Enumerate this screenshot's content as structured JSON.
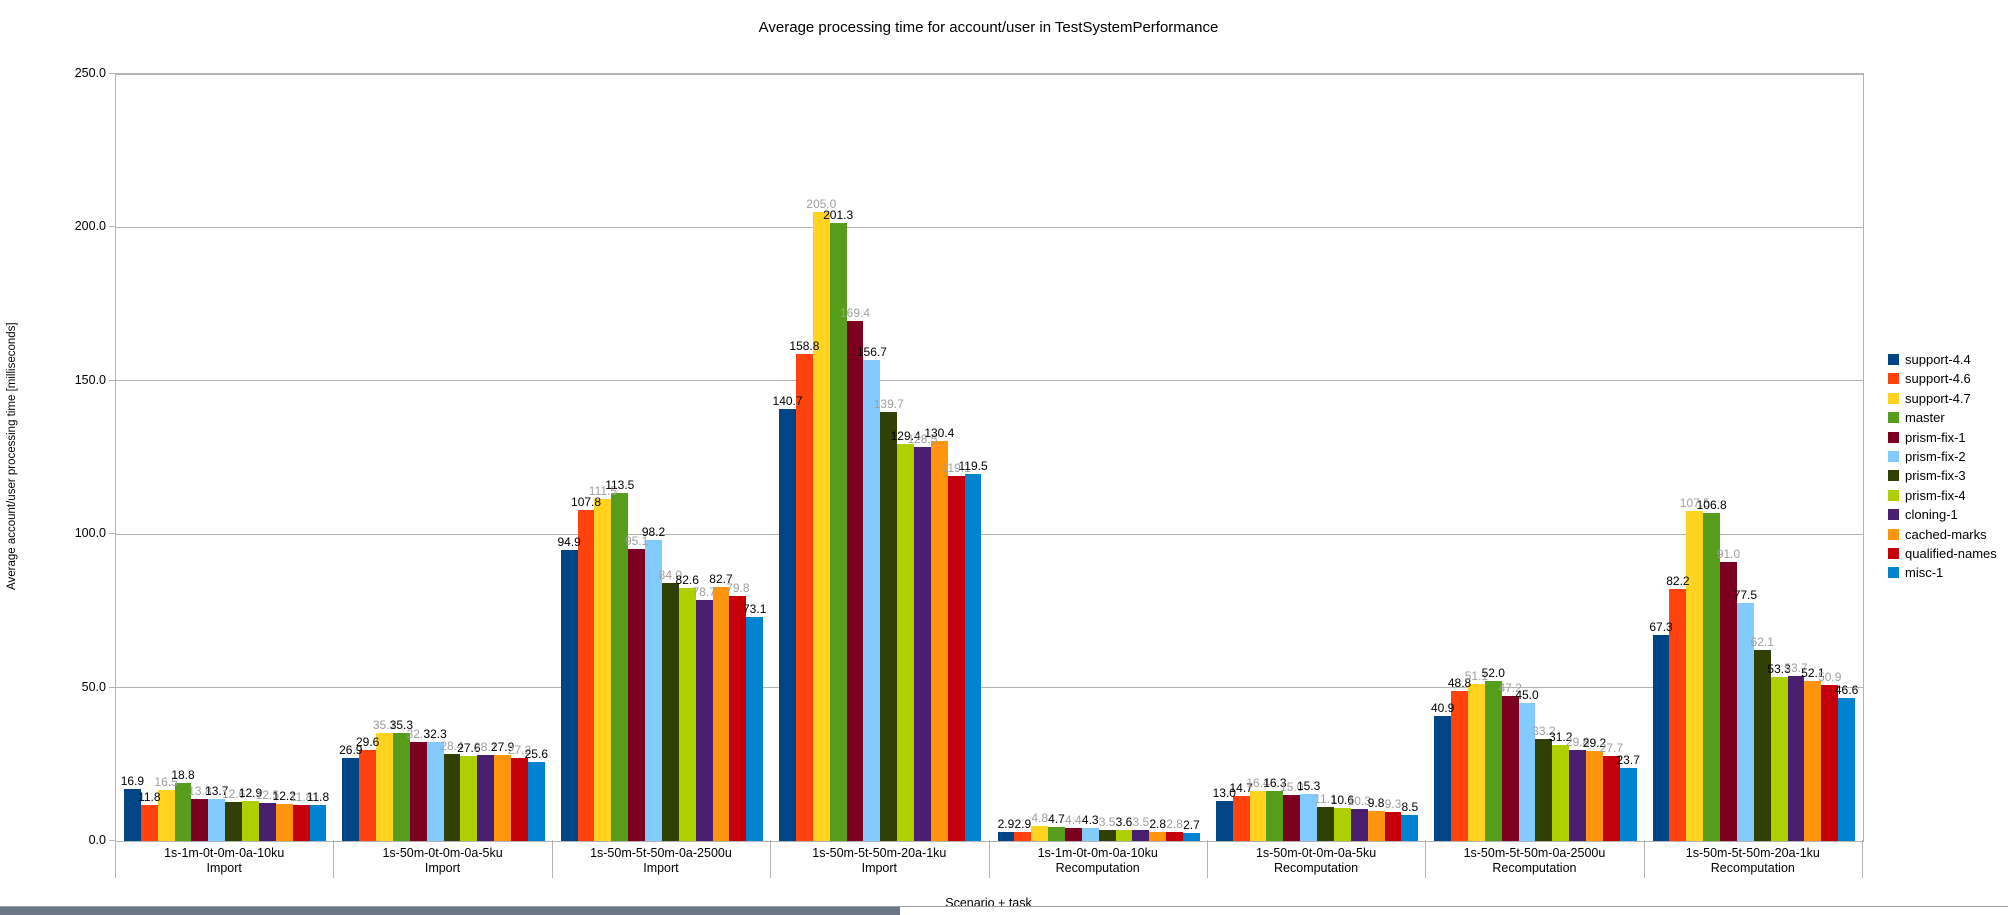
{
  "title": "Average processing time for account/user in TestSystemPerformance",
  "chart_data": {
    "type": "bar",
    "title": "Average processing time for account/user in TestSystemPerformance",
    "xlabel": "Scenario + task",
    "ylabel": "Average account/user processing time [milliseconds]",
    "ylim": [
      0,
      250
    ],
    "ytick_step": 50,
    "ytick_labels": [
      "0.0",
      "50.0",
      "100.0",
      "150.0",
      "200.0",
      "250.0"
    ],
    "grid": true,
    "legend_position": "right",
    "label_color_primary": "#000000",
    "label_color_alternate": "#9e9e9e",
    "categories": [
      {
        "line1": "1s-1m-0t-0m-0a-10ku",
        "line2": "Import"
      },
      {
        "line1": "1s-50m-0t-0m-0a-5ku",
        "line2": "Import"
      },
      {
        "line1": "1s-50m-5t-50m-0a-2500u",
        "line2": "Import"
      },
      {
        "line1": "1s-50m-5t-50m-20a-1ku",
        "line2": "Import"
      },
      {
        "line1": "1s-1m-0t-0m-0a-10ku",
        "line2": "Recomputation"
      },
      {
        "line1": "1s-50m-0t-0m-0a-5ku",
        "line2": "Recomputation"
      },
      {
        "line1": "1s-50m-5t-50m-0a-2500u",
        "line2": "Recomputation"
      },
      {
        "line1": "1s-50m-5t-50m-20a-1ku",
        "line2": "Recomputation"
      }
    ],
    "series": [
      {
        "name": "support-4.4",
        "color": "#004586",
        "values": [
          16.9,
          26.9,
          94.9,
          140.7,
          2.9,
          13.0,
          40.9,
          67.3
        ]
      },
      {
        "name": "support-4.6",
        "color": "#FF420E",
        "values": [
          11.8,
          29.6,
          107.8,
          158.8,
          2.9,
          14.7,
          48.8,
          82.2
        ]
      },
      {
        "name": "support-4.7",
        "color": "#FFD320",
        "values": [
          16.5,
          35.1,
          111.5,
          205.0,
          4.8,
          16.4,
          51.1,
          107.5
        ]
      },
      {
        "name": "master",
        "color": "#579D1C",
        "values": [
          18.8,
          35.3,
          113.5,
          201.3,
          4.7,
          16.3,
          52.0,
          106.8
        ]
      },
      {
        "name": "prism-fix-1",
        "color": "#7E0021",
        "values": [
          13.8,
          32.3,
          95.1,
          169.4,
          4.4,
          15.0,
          47.2,
          91.0
        ]
      },
      {
        "name": "prism-fix-2",
        "color": "#83CAFF",
        "values": [
          13.7,
          32.3,
          98.2,
          156.7,
          4.3,
          15.3,
          45.0,
          77.5
        ]
      },
      {
        "name": "prism-fix-3",
        "color": "#314004",
        "values": [
          12.6,
          28.4,
          84.0,
          139.7,
          3.5,
          11.1,
          33.2,
          62.1
        ]
      },
      {
        "name": "prism-fix-4",
        "color": "#AECF00",
        "values": [
          12.9,
          27.6,
          82.6,
          129.4,
          3.6,
          10.6,
          31.2,
          53.3
        ]
      },
      {
        "name": "cloning-1",
        "color": "#4B1F6F",
        "values": [
          12.5,
          28.1,
          78.7,
          128.5,
          3.5,
          10.3,
          29.8,
          53.7
        ]
      },
      {
        "name": "cached-marks",
        "color": "#FF950E",
        "values": [
          12.2,
          27.9,
          82.7,
          130.4,
          2.8,
          9.8,
          29.2,
          52.1
        ]
      },
      {
        "name": "qualified-names",
        "color": "#C5000B",
        "values": [
          11.8,
          27.2,
          79.8,
          119.1,
          2.8,
          9.3,
          27.7,
          50.9
        ]
      },
      {
        "name": "misc-1",
        "color": "#0084D1",
        "values": [
          11.8,
          25.6,
          73.1,
          119.5,
          2.7,
          8.5,
          23.7,
          46.6
        ]
      }
    ]
  }
}
